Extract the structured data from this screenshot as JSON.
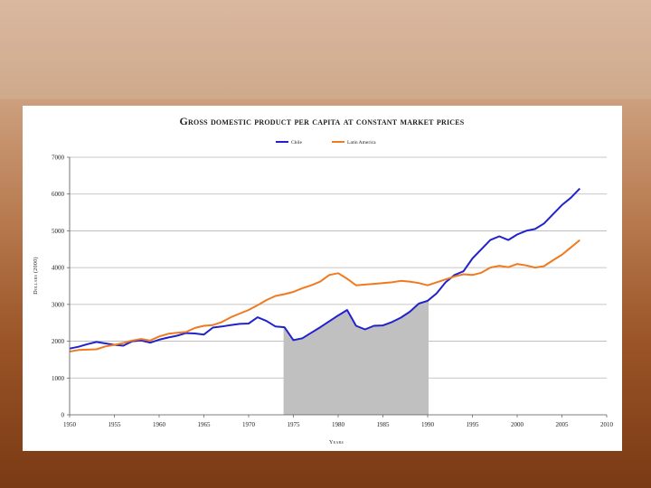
{
  "chart_data": {
    "type": "line",
    "title": "Gross domestic product per capita at constant market prices",
    "xlabel": "Years",
    "ylabel": "Dollars (2000)",
    "xlim": [
      1950,
      2010
    ],
    "ylim": [
      0,
      7000
    ],
    "x_ticks": [
      "1950",
      "1955",
      "1960",
      "1965",
      "1970",
      "1975",
      "1980",
      "1985",
      "1990",
      "1995",
      "2000",
      "2005",
      "2010"
    ],
    "y_ticks": [
      "0",
      "1000",
      "2000",
      "3000",
      "4000",
      "5000",
      "6000",
      "7000"
    ],
    "grid": "horizontal",
    "legend_position": "top-center",
    "shaded_region": {
      "x_start": 1973.9,
      "x_end": 1990.1,
      "color": "#c0c0c0",
      "label": ""
    },
    "x": [
      1950,
      1951,
      1952,
      1953,
      1954,
      1955,
      1956,
      1957,
      1958,
      1959,
      1960,
      1961,
      1962,
      1963,
      1964,
      1965,
      1966,
      1967,
      1968,
      1969,
      1970,
      1971,
      1972,
      1973,
      1974,
      1975,
      1976,
      1977,
      1978,
      1979,
      1980,
      1981,
      1982,
      1983,
      1984,
      1985,
      1986,
      1987,
      1988,
      1989,
      1990,
      1991,
      1992,
      1993,
      1994,
      1995,
      1996,
      1997,
      1998,
      1999,
      2000,
      2001,
      2002,
      2003,
      2004,
      2005,
      2006,
      2007
    ],
    "series": [
      {
        "name": "Chile",
        "color": "#2222cc",
        "values": [
          1800,
          1850,
          1920,
          1980,
          1940,
          1900,
          1880,
          2000,
          2020,
          1960,
          2040,
          2100,
          2150,
          2220,
          2210,
          2180,
          2370,
          2400,
          2440,
          2470,
          2480,
          2650,
          2550,
          2400,
          2380,
          2030,
          2080,
          2230,
          2380,
          2540,
          2700,
          2850,
          2420,
          2320,
          2420,
          2430,
          2520,
          2640,
          2800,
          3020,
          3100,
          3300,
          3600,
          3800,
          3900,
          4250,
          4500,
          4750,
          4850,
          4750,
          4900,
          5000,
          5050,
          5200,
          5450,
          5700,
          5900,
          6150
        ]
      },
      {
        "name": "Latin America",
        "color": "#f07a20",
        "values": [
          1720,
          1760,
          1770,
          1780,
          1860,
          1900,
          1950,
          2020,
          2060,
          2020,
          2130,
          2200,
          2230,
          2250,
          2360,
          2420,
          2440,
          2520,
          2650,
          2750,
          2850,
          2980,
          3120,
          3230,
          3280,
          3340,
          3440,
          3520,
          3620,
          3800,
          3850,
          3700,
          3520,
          3540,
          3560,
          3580,
          3600,
          3640,
          3620,
          3580,
          3520,
          3600,
          3680,
          3760,
          3820,
          3800,
          3860,
          4000,
          4050,
          4010,
          4100,
          4060,
          4000,
          4040,
          4200,
          4350,
          4550,
          4750
        ]
      }
    ]
  }
}
